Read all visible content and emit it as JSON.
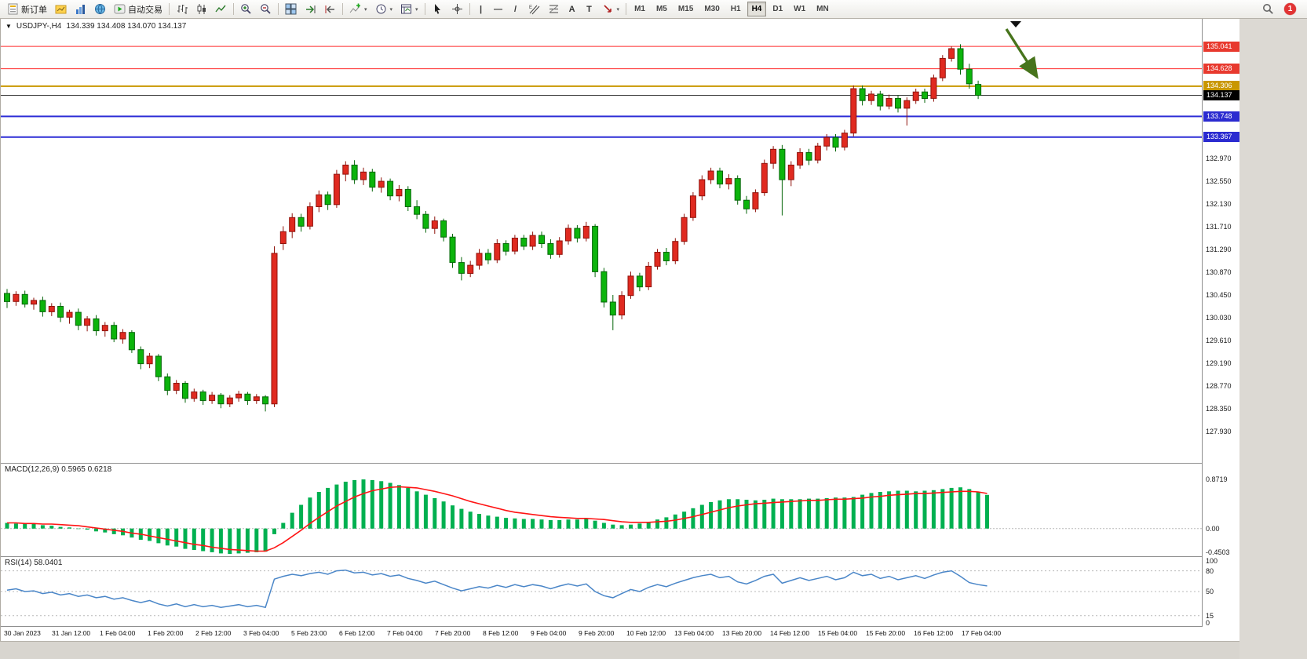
{
  "toolbar": {
    "new_order": "新订单",
    "autotrading": "自动交易",
    "timeframes": [
      "M1",
      "M5",
      "M15",
      "M30",
      "H1",
      "H4",
      "D1",
      "W1",
      "MN"
    ],
    "active_timeframe": "H4",
    "badge_count": "1",
    "tools": {
      "vline": "|",
      "hline": "—",
      "trend": "/",
      "text": "A",
      "label": "T",
      "caret": "▾"
    }
  },
  "chart": {
    "collapse_glyph": "▼",
    "title_symbol": "USDJPY-,H4",
    "title_ohlc": "134.339 134.408 134.070 134.137",
    "price_max": 135.55,
    "price_min": 127.35,
    "up_color": "#e02a20",
    "up_stroke": "#8f130c",
    "down_color": "#0cb40c",
    "down_stroke": "#056609",
    "y_ticks": [
      "132.970",
      "132.550",
      "132.130",
      "131.710",
      "131.290",
      "130.870",
      "130.450",
      "130.030",
      "129.610",
      "129.190",
      "128.770",
      "128.350",
      "127.930"
    ],
    "tag_lines": [
      {
        "price": 135.041,
        "label": "135.041",
        "color": "#e8392e",
        "line": "#ff2a2a",
        "w": 1
      },
      {
        "price": 134.628,
        "label": "134.628",
        "color": "#e8392e",
        "line": "#ff2a2a",
        "w": 1
      },
      {
        "price": 134.306,
        "label": "134.306",
        "color": "#c99700",
        "line": "#c99700",
        "w": 2
      },
      {
        "price": 134.137,
        "label": "134.137",
        "color": "#000000",
        "line": "#3a3a3a",
        "w": 1
      },
      {
        "price": 133.748,
        "label": "133.748",
        "color": "#2b2bd0",
        "line": "#2d2dd6",
        "w": 2
      },
      {
        "price": 133.367,
        "label": "133.367",
        "color": "#2b2bd0",
        "line": "#2d2dd6",
        "w": 2
      }
    ],
    "annotation": {
      "arrow_color": "#47741c",
      "marker_color": "#111111"
    },
    "candles": [
      [
        130.48,
        130.56,
        130.21,
        130.33
      ],
      [
        130.33,
        130.52,
        130.25,
        130.46
      ],
      [
        130.46,
        130.53,
        130.22,
        130.28
      ],
      [
        130.28,
        130.4,
        130.18,
        130.35
      ],
      [
        130.35,
        130.42,
        130.05,
        130.14
      ],
      [
        130.14,
        130.3,
        130.06,
        130.24
      ],
      [
        130.24,
        130.31,
        129.95,
        130.04
      ],
      [
        130.04,
        130.18,
        129.92,
        130.13
      ],
      [
        130.13,
        130.2,
        129.8,
        129.89
      ],
      [
        129.89,
        130.06,
        129.78,
        130.01
      ],
      [
        130.01,
        130.08,
        129.7,
        129.79
      ],
      [
        129.79,
        129.95,
        129.68,
        129.89
      ],
      [
        129.89,
        129.95,
        129.58,
        129.64
      ],
      [
        129.64,
        129.82,
        129.55,
        129.76
      ],
      [
        129.76,
        129.8,
        129.38,
        129.44
      ],
      [
        129.44,
        129.5,
        129.08,
        129.18
      ],
      [
        129.18,
        129.38,
        129.1,
        129.32
      ],
      [
        129.32,
        129.36,
        128.86,
        128.94
      ],
      [
        128.94,
        129.0,
        128.6,
        128.69
      ],
      [
        128.69,
        128.88,
        128.62,
        128.82
      ],
      [
        128.82,
        128.86,
        128.46,
        128.54
      ],
      [
        128.54,
        128.72,
        128.48,
        128.66
      ],
      [
        128.66,
        128.7,
        128.42,
        128.5
      ],
      [
        128.5,
        128.66,
        128.44,
        128.6
      ],
      [
        128.6,
        128.64,
        128.36,
        128.44
      ],
      [
        128.44,
        128.6,
        128.38,
        128.55
      ],
      [
        128.55,
        128.68,
        128.48,
        128.62
      ],
      [
        128.62,
        128.66,
        128.42,
        128.5
      ],
      [
        128.5,
        128.62,
        128.44,
        128.57
      ],
      [
        128.57,
        128.6,
        128.3,
        128.44
      ],
      [
        128.44,
        131.35,
        128.38,
        131.22
      ],
      [
        131.4,
        131.72,
        131.28,
        131.62
      ],
      [
        131.62,
        131.96,
        131.5,
        131.88
      ],
      [
        131.88,
        131.95,
        131.62,
        131.72
      ],
      [
        131.72,
        132.16,
        131.66,
        132.08
      ],
      [
        132.08,
        132.38,
        131.98,
        132.3
      ],
      [
        132.3,
        132.36,
        132.02,
        132.12
      ],
      [
        132.12,
        132.76,
        132.06,
        132.68
      ],
      [
        132.68,
        132.92,
        132.55,
        132.85
      ],
      [
        132.85,
        132.94,
        132.5,
        132.58
      ],
      [
        132.58,
        132.8,
        132.48,
        132.72
      ],
      [
        132.72,
        132.78,
        132.36,
        132.44
      ],
      [
        132.44,
        132.62,
        132.34,
        132.55
      ],
      [
        132.55,
        132.6,
        132.2,
        132.28
      ],
      [
        132.28,
        132.48,
        132.18,
        132.4
      ],
      [
        132.4,
        132.46,
        132.0,
        132.08
      ],
      [
        132.08,
        132.2,
        131.85,
        131.94
      ],
      [
        131.94,
        132.0,
        131.6,
        131.68
      ],
      [
        131.68,
        131.9,
        131.58,
        131.82
      ],
      [
        131.82,
        131.86,
        131.44,
        131.52
      ],
      [
        131.52,
        131.58,
        130.95,
        131.05
      ],
      [
        131.05,
        131.15,
        130.72,
        130.85
      ],
      [
        130.85,
        131.08,
        130.78,
        131.0
      ],
      [
        131.0,
        131.3,
        130.92,
        131.22
      ],
      [
        131.22,
        131.3,
        131.02,
        131.1
      ],
      [
        131.1,
        131.48,
        131.04,
        131.4
      ],
      [
        131.4,
        131.46,
        131.18,
        131.26
      ],
      [
        131.26,
        131.56,
        131.2,
        131.5
      ],
      [
        131.5,
        131.56,
        131.28,
        131.35
      ],
      [
        131.35,
        131.62,
        131.28,
        131.55
      ],
      [
        131.55,
        131.62,
        131.32,
        131.4
      ],
      [
        131.4,
        131.48,
        131.12,
        131.2
      ],
      [
        131.2,
        131.52,
        131.14,
        131.45
      ],
      [
        131.45,
        131.75,
        131.38,
        131.68
      ],
      [
        131.68,
        131.74,
        131.42,
        131.5
      ],
      [
        131.5,
        131.8,
        131.44,
        131.72
      ],
      [
        131.72,
        131.76,
        130.78,
        130.88
      ],
      [
        130.88,
        130.95,
        130.22,
        130.32
      ],
      [
        130.32,
        130.45,
        129.8,
        130.08
      ],
      [
        130.08,
        130.52,
        130.0,
        130.44
      ],
      [
        130.44,
        130.88,
        130.38,
        130.8
      ],
      [
        130.8,
        130.86,
        130.52,
        130.6
      ],
      [
        130.6,
        131.06,
        130.54,
        130.98
      ],
      [
        130.98,
        131.3,
        130.92,
        131.24
      ],
      [
        131.24,
        131.32,
        131.0,
        131.08
      ],
      [
        131.08,
        131.5,
        131.02,
        131.44
      ],
      [
        131.44,
        131.95,
        131.38,
        131.88
      ],
      [
        131.88,
        132.35,
        131.82,
        132.28
      ],
      [
        132.28,
        132.66,
        132.2,
        132.58
      ],
      [
        132.58,
        132.8,
        132.5,
        132.74
      ],
      [
        132.74,
        132.8,
        132.42,
        132.5
      ],
      [
        132.5,
        132.68,
        132.4,
        132.6
      ],
      [
        132.6,
        132.66,
        132.12,
        132.2
      ],
      [
        132.2,
        132.28,
        131.95,
        132.04
      ],
      [
        132.04,
        132.4,
        131.98,
        132.34
      ],
      [
        132.34,
        132.95,
        132.28,
        132.88
      ],
      [
        132.88,
        133.2,
        132.78,
        133.14
      ],
      [
        133.14,
        133.22,
        131.92,
        132.58
      ],
      [
        132.58,
        132.92,
        132.46,
        132.85
      ],
      [
        132.85,
        133.16,
        132.78,
        133.08
      ],
      [
        133.08,
        133.15,
        132.85,
        132.94
      ],
      [
        132.94,
        133.26,
        132.88,
        133.2
      ],
      [
        133.2,
        133.42,
        133.12,
        133.36
      ],
      [
        133.36,
        133.42,
        133.1,
        133.18
      ],
      [
        133.18,
        133.5,
        133.12,
        133.44
      ],
      [
        133.44,
        134.32,
        133.38,
        134.26
      ],
      [
        134.26,
        134.32,
        133.95,
        134.04
      ],
      [
        134.04,
        134.22,
        133.96,
        134.16
      ],
      [
        134.16,
        134.22,
        133.86,
        133.94
      ],
      [
        133.94,
        134.15,
        133.88,
        134.08
      ],
      [
        134.08,
        134.14,
        133.82,
        133.9
      ],
      [
        133.9,
        134.1,
        133.58,
        134.04
      ],
      [
        134.04,
        134.26,
        133.98,
        134.2
      ],
      [
        134.2,
        134.26,
        134.0,
        134.08
      ],
      [
        134.08,
        134.52,
        134.02,
        134.46
      ],
      [
        134.46,
        134.88,
        134.4,
        134.82
      ],
      [
        134.82,
        135.04,
        134.76,
        135.0
      ],
      [
        135.0,
        135.08,
        134.52,
        134.62
      ],
      [
        134.62,
        134.72,
        134.26,
        134.35
      ],
      [
        134.339,
        134.408,
        134.07,
        134.137
      ]
    ]
  },
  "macd": {
    "label": "MACD(12,26,9) 0.5965 0.6218",
    "scale": [
      {
        "v": 0.8719,
        "t": "0.8719"
      },
      {
        "v": 0,
        "t": "0.00"
      },
      {
        "v": -0.4503,
        "t": "-0.4503"
      }
    ],
    "max": 1.15,
    "min": -0.49,
    "hist_color": "#00b050",
    "signal_color": "#ff1414",
    "hist": [
      0.1,
      0.09,
      0.08,
      0.08,
      0.06,
      0.05,
      0.03,
      0.02,
      0.0,
      -0.02,
      -0.05,
      -0.07,
      -0.1,
      -0.12,
      -0.16,
      -0.2,
      -0.22,
      -0.26,
      -0.3,
      -0.32,
      -0.36,
      -0.38,
      -0.4,
      -0.42,
      -0.44,
      -0.45,
      -0.44,
      -0.43,
      -0.42,
      -0.41,
      -0.1,
      0.1,
      0.28,
      0.42,
      0.55,
      0.65,
      0.72,
      0.78,
      0.83,
      0.86,
      0.87,
      0.86,
      0.84,
      0.81,
      0.77,
      0.72,
      0.66,
      0.6,
      0.54,
      0.48,
      0.41,
      0.35,
      0.3,
      0.26,
      0.23,
      0.21,
      0.19,
      0.18,
      0.17,
      0.17,
      0.16,
      0.15,
      0.15,
      0.16,
      0.16,
      0.17,
      0.14,
      0.1,
      0.07,
      0.06,
      0.07,
      0.09,
      0.12,
      0.16,
      0.2,
      0.25,
      0.3,
      0.36,
      0.42,
      0.47,
      0.5,
      0.52,
      0.52,
      0.51,
      0.5,
      0.51,
      0.53,
      0.52,
      0.52,
      0.52,
      0.53,
      0.53,
      0.54,
      0.55,
      0.55,
      0.56,
      0.6,
      0.63,
      0.65,
      0.66,
      0.67,
      0.67,
      0.66,
      0.67,
      0.68,
      0.7,
      0.72,
      0.73,
      0.7,
      0.65,
      0.5965
    ],
    "signal": [
      0.1,
      0.1,
      0.09,
      0.09,
      0.08,
      0.08,
      0.07,
      0.06,
      0.05,
      0.03,
      0.01,
      -0.01,
      -0.03,
      -0.05,
      -0.08,
      -0.1,
      -0.13,
      -0.16,
      -0.19,
      -0.22,
      -0.25,
      -0.28,
      -0.3,
      -0.33,
      -0.35,
      -0.37,
      -0.38,
      -0.39,
      -0.4,
      -0.4,
      -0.34,
      -0.25,
      -0.14,
      -0.03,
      0.09,
      0.2,
      0.3,
      0.4,
      0.48,
      0.56,
      0.62,
      0.67,
      0.7,
      0.73,
      0.74,
      0.73,
      0.72,
      0.69,
      0.66,
      0.62,
      0.58,
      0.53,
      0.48,
      0.44,
      0.4,
      0.36,
      0.32,
      0.29,
      0.27,
      0.25,
      0.23,
      0.21,
      0.2,
      0.19,
      0.18,
      0.18,
      0.17,
      0.16,
      0.14,
      0.12,
      0.11,
      0.11,
      0.11,
      0.12,
      0.13,
      0.15,
      0.18,
      0.21,
      0.25,
      0.29,
      0.33,
      0.37,
      0.4,
      0.42,
      0.44,
      0.45,
      0.46,
      0.47,
      0.48,
      0.49,
      0.5,
      0.5,
      0.51,
      0.52,
      0.52,
      0.53,
      0.54,
      0.56,
      0.57,
      0.59,
      0.6,
      0.61,
      0.62,
      0.62,
      0.63,
      0.64,
      0.65,
      0.66,
      0.66,
      0.65,
      0.6218
    ]
  },
  "rsi": {
    "label": "RSI(14) 58.0401",
    "scale": [
      {
        "v": 100,
        "t": "100"
      },
      {
        "v": 80,
        "t": "80"
      },
      {
        "v": 50,
        "t": "50"
      },
      {
        "v": 15,
        "t": "15"
      },
      {
        "v": 0,
        "t": "0"
      }
    ],
    "levels": [
      80,
      50,
      15
    ],
    "line_color": "#4a86c8",
    "values": [
      52,
      54,
      50,
      51,
      47,
      49,
      45,
      47,
      43,
      45,
      41,
      43,
      39,
      41,
      37,
      34,
      37,
      32,
      29,
      32,
      28,
      31,
      28,
      30,
      27,
      29,
      31,
      28,
      30,
      27,
      68,
      72,
      75,
      73,
      76,
      78,
      75,
      80,
      81,
      77,
      78,
      74,
      76,
      72,
      74,
      69,
      66,
      62,
      65,
      60,
      55,
      51,
      54,
      57,
      55,
      59,
      56,
      60,
      57,
      60,
      58,
      54,
      58,
      61,
      58,
      61,
      50,
      44,
      41,
      47,
      53,
      50,
      56,
      60,
      57,
      62,
      66,
      70,
      73,
      75,
      70,
      72,
      64,
      61,
      66,
      72,
      75,
      62,
      66,
      70,
      66,
      69,
      72,
      67,
      70,
      78,
      73,
      75,
      69,
      72,
      67,
      70,
      73,
      69,
      74,
      78,
      80,
      72,
      63,
      60,
      58.04
    ]
  },
  "time_axis": [
    "30 Jan 2023",
    "31 Jan 12:00",
    "1 Feb 04:00",
    "1 Feb 20:00",
    "2 Feb 12:00",
    "3 Feb 04:00",
    "5 Feb 23:00",
    "6 Feb 12:00",
    "7 Feb 04:00",
    "7 Feb 20:00",
    "8 Feb 12:00",
    "9 Feb 04:00",
    "9 Feb 20:00",
    "10 Feb 12:00",
    "13 Feb 04:00",
    "13 Feb 20:00",
    "14 Feb 12:00",
    "15 Feb 04:00",
    "15 Feb 20:00",
    "16 Feb 12:00",
    "17 Feb 04:00"
  ]
}
